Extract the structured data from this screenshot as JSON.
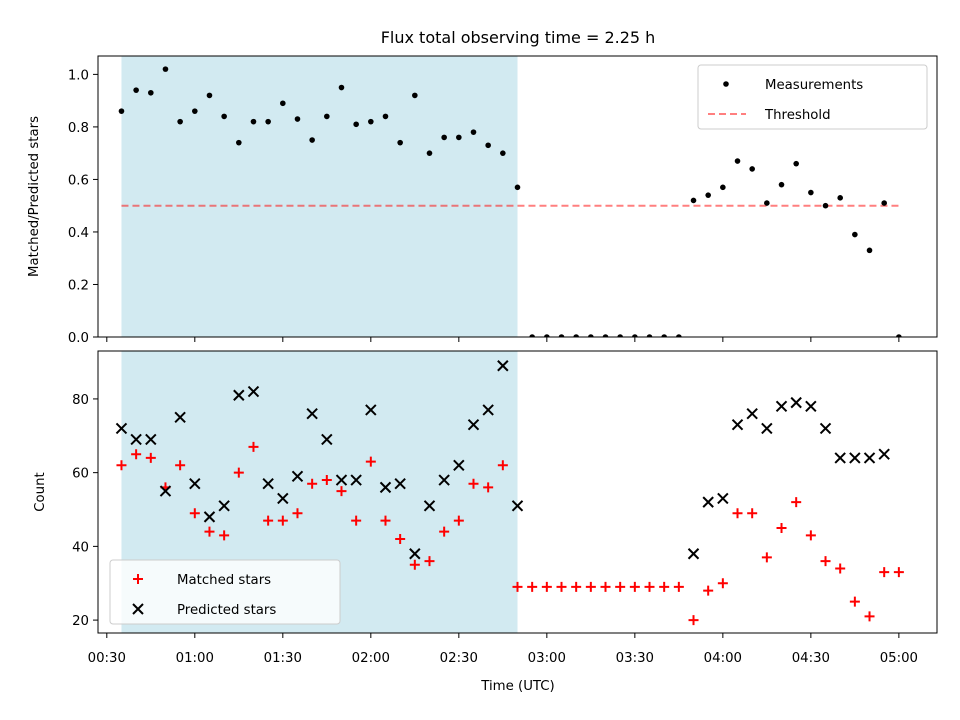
{
  "title": "Flux total observing time = 2.25 h",
  "xlabel": "Time (UTC)",
  "x_ticks": [
    "00:30",
    "01:00",
    "01:30",
    "02:00",
    "02:30",
    "03:00",
    "03:30",
    "04:00",
    "04:30",
    "05:00"
  ],
  "colors": {
    "shade": "#add8e6",
    "measurement": "#000000",
    "threshold": "#ff0000",
    "matched": "#ff0000",
    "predicted": "#000000"
  },
  "chart_data": [
    {
      "type": "scatter",
      "ylabel": "Matched/Predicted stars",
      "xlim": [
        "00:27",
        "05:13"
      ],
      "ylim": [
        0,
        1.07
      ],
      "y_ticks": [
        "0.0",
        "0.2",
        "0.4",
        "0.6",
        "0.8",
        "1.0"
      ],
      "y_tick_values": [
        0,
        0.2,
        0.4,
        0.6,
        0.8,
        1.0
      ],
      "shaded_interval": [
        "00:35",
        "02:50"
      ],
      "legend": {
        "placement": "top-right",
        "entries": [
          "Measurements",
          "Threshold"
        ]
      },
      "threshold": {
        "name": "Threshold",
        "value": 0.5,
        "x": [
          "00:35",
          "05:00"
        ]
      },
      "series": [
        {
          "name": "Measurements",
          "x": [
            "00:35",
            "00:40",
            "00:45",
            "00:50",
            "00:55",
            "01:00",
            "01:05",
            "01:10",
            "01:15",
            "01:20",
            "01:25",
            "01:30",
            "01:35",
            "01:40",
            "01:45",
            "01:50",
            "01:55",
            "02:00",
            "02:05",
            "02:10",
            "02:15",
            "02:20",
            "02:25",
            "02:30",
            "02:35",
            "02:40",
            "02:45",
            "02:50",
            "02:55",
            "03:00",
            "03:05",
            "03:10",
            "03:15",
            "03:20",
            "03:25",
            "03:30",
            "03:35",
            "03:40",
            "03:45",
            "03:50",
            "03:55",
            "04:00",
            "04:05",
            "04:10",
            "04:15",
            "04:20",
            "04:25",
            "04:30",
            "04:35",
            "04:40",
            "04:45",
            "04:50",
            "04:55",
            "05:00"
          ],
          "y": [
            0.86,
            0.94,
            0.93,
            1.02,
            0.82,
            0.86,
            0.92,
            0.84,
            0.74,
            0.82,
            0.82,
            0.89,
            0.83,
            0.75,
            0.84,
            0.95,
            0.81,
            0.82,
            0.84,
            0.74,
            0.92,
            0.7,
            0.76,
            0.76,
            0.78,
            0.73,
            0.7,
            0.57,
            0.0,
            0.0,
            0.0,
            0.0,
            0.0,
            0.0,
            0.0,
            0.0,
            0.0,
            0.0,
            0.0,
            0.52,
            0.54,
            0.57,
            0.67,
            0.64,
            0.51,
            0.58,
            0.66,
            0.55,
            0.5,
            0.53,
            0.39,
            0.33,
            0.51,
            0.0
          ]
        }
      ]
    },
    {
      "type": "scatter",
      "ylabel": "Count",
      "xlim": [
        "00:27",
        "05:13"
      ],
      "ylim": [
        16.5,
        93
      ],
      "y_ticks": [
        "20",
        "40",
        "60",
        "80"
      ],
      "y_tick_values": [
        20,
        40,
        60,
        80
      ],
      "shaded_interval": [
        "00:35",
        "02:50"
      ],
      "legend": {
        "placement": "bottom-left",
        "entries": [
          "Matched stars",
          "Predicted stars"
        ]
      },
      "series": [
        {
          "name": "Matched stars",
          "marker": "+",
          "x": [
            "00:35",
            "00:40",
            "00:45",
            "00:50",
            "00:55",
            "01:00",
            "01:05",
            "01:10",
            "01:15",
            "01:20",
            "01:25",
            "01:30",
            "01:35",
            "01:40",
            "01:45",
            "01:50",
            "01:55",
            "02:00",
            "02:05",
            "02:10",
            "02:15",
            "02:20",
            "02:25",
            "02:30",
            "02:35",
            "02:40",
            "02:45",
            "02:50",
            "02:55",
            "03:00",
            "03:05",
            "03:10",
            "03:15",
            "03:20",
            "03:25",
            "03:30",
            "03:35",
            "03:40",
            "03:45",
            "03:50",
            "03:55",
            "04:00",
            "04:05",
            "04:10",
            "04:15",
            "04:20",
            "04:25",
            "04:30",
            "04:35",
            "04:40",
            "04:45",
            "04:50",
            "04:55",
            "05:00"
          ],
          "y": [
            62,
            65,
            64,
            56,
            62,
            49,
            44,
            43,
            60,
            67,
            47,
            47,
            49,
            57,
            58,
            55,
            47,
            63,
            47,
            42,
            35,
            36,
            44,
            47,
            57,
            56,
            62,
            29,
            29,
            29,
            29,
            29,
            29,
            29,
            29,
            29,
            29,
            29,
            29,
            20,
            28,
            30,
            49,
            49,
            37,
            45,
            52,
            43,
            36,
            34,
            25,
            21,
            33,
            33
          ]
        },
        {
          "name": "Predicted stars",
          "marker": "x",
          "x": [
            "00:35",
            "00:40",
            "00:45",
            "00:50",
            "00:55",
            "01:00",
            "01:05",
            "01:10",
            "01:15",
            "01:20",
            "01:25",
            "01:30",
            "01:35",
            "01:40",
            "01:45",
            "01:50",
            "01:55",
            "02:00",
            "02:05",
            "02:10",
            "02:15",
            "02:20",
            "02:25",
            "02:30",
            "02:35",
            "02:40",
            "02:45",
            "02:50",
            "03:50",
            "03:55",
            "04:00",
            "04:05",
            "04:10",
            "04:15",
            "04:20",
            "04:25",
            "04:30",
            "04:35",
            "04:40",
            "04:45",
            "04:50",
            "04:55"
          ],
          "y": [
            72,
            69,
            69,
            55,
            75,
            57,
            48,
            51,
            81,
            82,
            57,
            53,
            59,
            76,
            69,
            58,
            58,
            77,
            56,
            57,
            38,
            51,
            58,
            62,
            73,
            77,
            89,
            51,
            38,
            52,
            53,
            73,
            76,
            72,
            78,
            79,
            78,
            72,
            64,
            64,
            64,
            65
          ]
        }
      ]
    }
  ]
}
